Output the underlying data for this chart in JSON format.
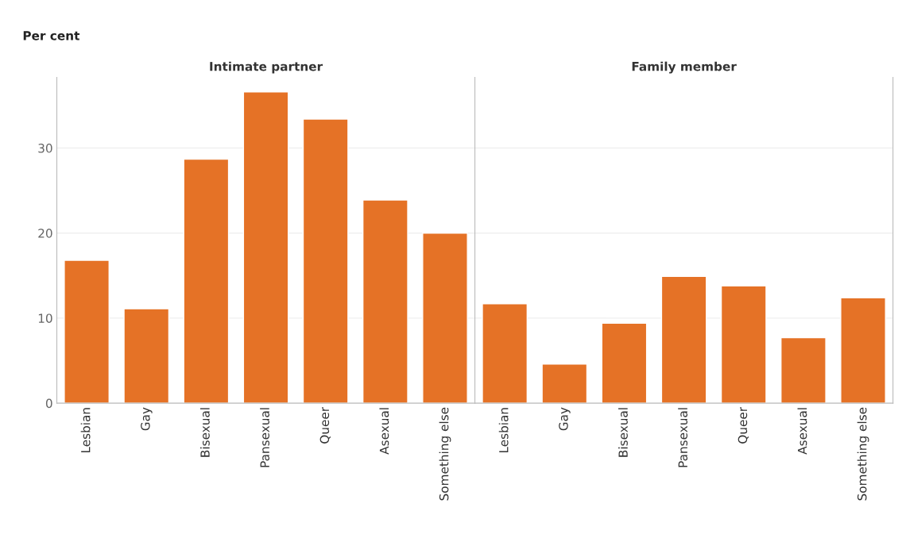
{
  "chart_data": [
    {
      "type": "bar",
      "title": "Intimate partner",
      "ylabel": "Per cent",
      "categories": [
        "Lesbian",
        "Gay",
        "Bisexual",
        "Pansexual",
        "Queer",
        "Asexual",
        "Something else"
      ],
      "values": [
        16.8,
        11.1,
        28.7,
        36.6,
        33.4,
        23.9,
        20.0
      ],
      "color": "#e57226",
      "ylim": [
        0,
        38.3
      ],
      "yticks": [
        0,
        10,
        20,
        30
      ],
      "grid": "y"
    },
    {
      "type": "bar",
      "title": "Family member",
      "categories": [
        "Lesbian",
        "Gay",
        "Bisexual",
        "Pansexual",
        "Queer",
        "Asexual",
        "Something else"
      ],
      "values": [
        11.7,
        4.6,
        9.4,
        14.9,
        13.8,
        7.7,
        12.4
      ],
      "color": "#e57226",
      "ylim": [
        0,
        38.3
      ],
      "yticks": [
        0,
        10,
        20,
        30
      ],
      "grid": "y",
      "tick_labels": "x"
    }
  ]
}
